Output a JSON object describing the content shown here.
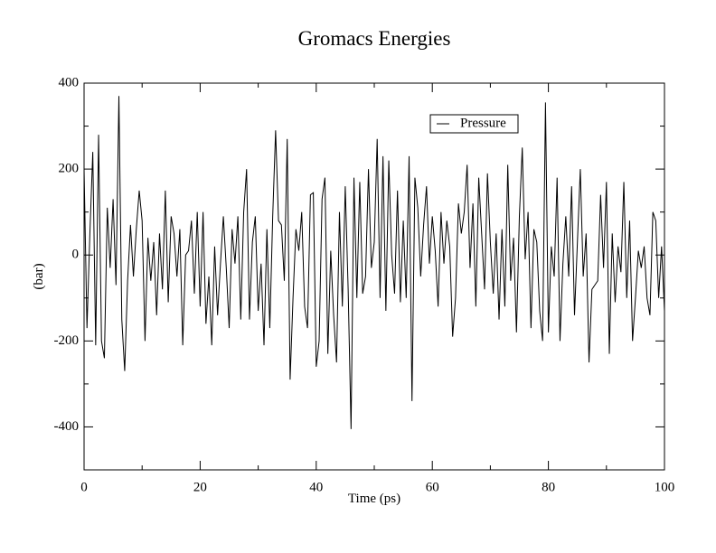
{
  "chart_data": {
    "type": "line",
    "title": "Gromacs Energies",
    "xlabel": "Time (ps)",
    "ylabel": "(bar)",
    "xlim": [
      0,
      100
    ],
    "xticks": [
      0,
      20,
      40,
      60,
      80,
      100
    ],
    "xticks_minor": [
      10,
      30,
      50,
      70,
      90
    ],
    "ylim": [
      -500,
      400
    ],
    "yticks": [
      -400,
      -200,
      0,
      200,
      400
    ],
    "yticks_minor": [
      -300,
      -100,
      100,
      300
    ],
    "legend": "upper right",
    "x": [
      0,
      0.5,
      1,
      1.5,
      2,
      2.5,
      3,
      3.5,
      4,
      4.5,
      5,
      5.5,
      6,
      6.5,
      7,
      7.5,
      8,
      8.5,
      9,
      9.5,
      10,
      10.5,
      11,
      11.5,
      12,
      12.5,
      13,
      13.5,
      14,
      14.5,
      15,
      15.5,
      16,
      16.5,
      17,
      17.5,
      18,
      18.5,
      19,
      19.5,
      20,
      20.5,
      21,
      21.5,
      22,
      22.5,
      23,
      23.5,
      24,
      24.5,
      25,
      25.5,
      26,
      26.5,
      27,
      27.5,
      28,
      28.5,
      29,
      29.5,
      30,
      30.5,
      31,
      31.5,
      32,
      32.5,
      33,
      33.5,
      34,
      34.5,
      35,
      35.5,
      36,
      36.5,
      37,
      37.5,
      38,
      38.5,
      39,
      39.5,
      40,
      40.5,
      41,
      41.5,
      42,
      42.5,
      43,
      43.5,
      44,
      44.5,
      45,
      45.5,
      46,
      46.5,
      47,
      47.5,
      48,
      48.5,
      49,
      49.5,
      50,
      50.5,
      51,
      51.5,
      52,
      52.5,
      53,
      53.5,
      54,
      54.5,
      55,
      55.5,
      56,
      56.5,
      57,
      57.5,
      58,
      58.5,
      59,
      59.5,
      60,
      60.5,
      61,
      61.5,
      62,
      62.5,
      63,
      63.5,
      64,
      64.5,
      65,
      65.5,
      66,
      66.5,
      67,
      67.5,
      68,
      68.5,
      69,
      69.5,
      70,
      70.5,
      71,
      71.5,
      72,
      72.5,
      73,
      73.5,
      74,
      74.5,
      75,
      75.5,
      76,
      76.5,
      77,
      77.5,
      78,
      78.5,
      79,
      79.5,
      80,
      80.5,
      81,
      81.5,
      82,
      82.5,
      83,
      83.5,
      84,
      84.5,
      85,
      85.5,
      86,
      86.5,
      87,
      87.5,
      88,
      88.5,
      89,
      89.5,
      90,
      90.5,
      91,
      91.5,
      92,
      92.5,
      93,
      93.5,
      94,
      94.5,
      95,
      95.5,
      96,
      96.5,
      97,
      97.5,
      98,
      98.5,
      99,
      99.5,
      100
    ],
    "series": [
      {
        "name": "Pressure",
        "color": "#000000",
        "values": [
          200,
          -170,
          50,
          240,
          -210,
          280,
          -200,
          -240,
          110,
          -30,
          130,
          -70,
          370,
          -150,
          -270,
          -60,
          70,
          -50,
          60,
          150,
          80,
          -200,
          40,
          -60,
          30,
          -140,
          50,
          -80,
          150,
          -110,
          90,
          50,
          -50,
          60,
          -210,
          0,
          10,
          80,
          -90,
          100,
          -120,
          100,
          -160,
          -50,
          -210,
          20,
          -140,
          -20,
          90,
          -30,
          -170,
          60,
          -20,
          90,
          -150,
          100,
          200,
          -150,
          30,
          90,
          -130,
          -20,
          -210,
          60,
          -170,
          90,
          290,
          80,
          70,
          -60,
          270,
          -290,
          -100,
          60,
          10,
          100,
          -120,
          -170,
          140,
          145,
          -260,
          -200,
          130,
          180,
          -230,
          10,
          -140,
          -250,
          100,
          -120,
          160,
          -80,
          -405,
          180,
          -100,
          170,
          -90,
          -50,
          200,
          -30,
          30,
          270,
          -100,
          230,
          -130,
          220,
          0,
          -90,
          150,
          -110,
          80,
          -100,
          230,
          -340,
          180,
          110,
          -50,
          70,
          160,
          -20,
          90,
          10,
          -120,
          100,
          -20,
          80,
          20,
          -190,
          -100,
          120,
          50,
          100,
          210,
          -30,
          120,
          -120,
          180,
          50,
          -80,
          190,
          30,
          -90,
          50,
          -150,
          60,
          -120,
          210,
          -60,
          40,
          -180,
          90,
          250,
          -10,
          100,
          -170,
          60,
          30,
          -130,
          -200,
          355,
          -180,
          20,
          -50,
          180,
          -200,
          -20,
          90,
          -50,
          160,
          -140,
          30,
          200,
          -50,
          50,
          -250,
          -80,
          -70,
          -60,
          140,
          -30,
          170,
          -230,
          50,
          -110,
          20,
          -40,
          170,
          -100,
          80,
          -200,
          -100,
          10,
          -30,
          20,
          -100,
          -140,
          100,
          80,
          -100,
          20,
          -130
        ]
      }
    ]
  }
}
